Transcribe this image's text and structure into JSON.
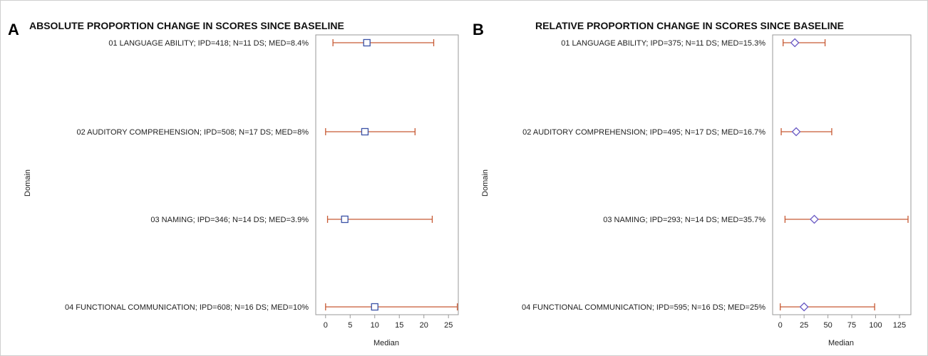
{
  "colors": {
    "interval": "#c75a34",
    "marker_a": "#3a52a6",
    "marker_b": "#6a5ac4",
    "axis": "#9a9a9a",
    "text": "#222222"
  },
  "chart_data": [
    {
      "type": "forest-interval",
      "panel_letter": "A",
      "title": "ABSOLUTE PROPORTION CHANGE IN SCORES SINCE BASELINE",
      "xlabel": "Median",
      "ylabel": "Domain",
      "xlim": [
        -2,
        27
      ],
      "xticks": [
        0,
        5,
        10,
        15,
        20,
        25
      ],
      "marker": "square",
      "categories": [
        "01 LANGUAGE ABILITY; IPD=418; N=11 DS; MED=8.4%",
        "02 AUDITORY COMPREHENSION; IPD=508; N=17 DS; MED=8%",
        "03 NAMING; IPD=346; N=14 DS; MED=3.9%",
        "04 FUNCTIONAL COMMUNICATION; IPD=608; N=16 DS; MED=10%"
      ],
      "median": [
        8.4,
        8,
        3.9,
        10
      ],
      "lower": [
        1.5,
        0,
        0.4,
        0
      ],
      "upper": [
        22,
        18.2,
        21.7,
        26.8
      ],
      "grid": false
    },
    {
      "type": "forest-interval",
      "panel_letter": "B",
      "title": "RELATIVE PROPORTION CHANGE IN SCORES SINCE BASELINE",
      "xlabel": "Median",
      "ylabel": "Domain",
      "xlim": [
        -8,
        137
      ],
      "xticks": [
        0,
        25,
        50,
        75,
        100,
        125
      ],
      "marker": "diamond",
      "categories": [
        "01 LANGUAGE ABILITY; IPD=375; N=11 DS; MED=15.3%",
        "02 AUDITORY COMPREHENSION; IPD=495; N=17 DS; MED=16.7%",
        "03 NAMING; IPD=293; N=14 DS; MED=35.7%",
        "04 FUNCTIONAL COMMUNICATION; IPD=595; N=16 DS; MED=25%"
      ],
      "median": [
        15.3,
        16.7,
        35.7,
        25
      ],
      "lower": [
        3,
        1,
        5,
        0
      ],
      "upper": [
        47,
        54,
        134,
        99
      ],
      "grid": false
    }
  ]
}
